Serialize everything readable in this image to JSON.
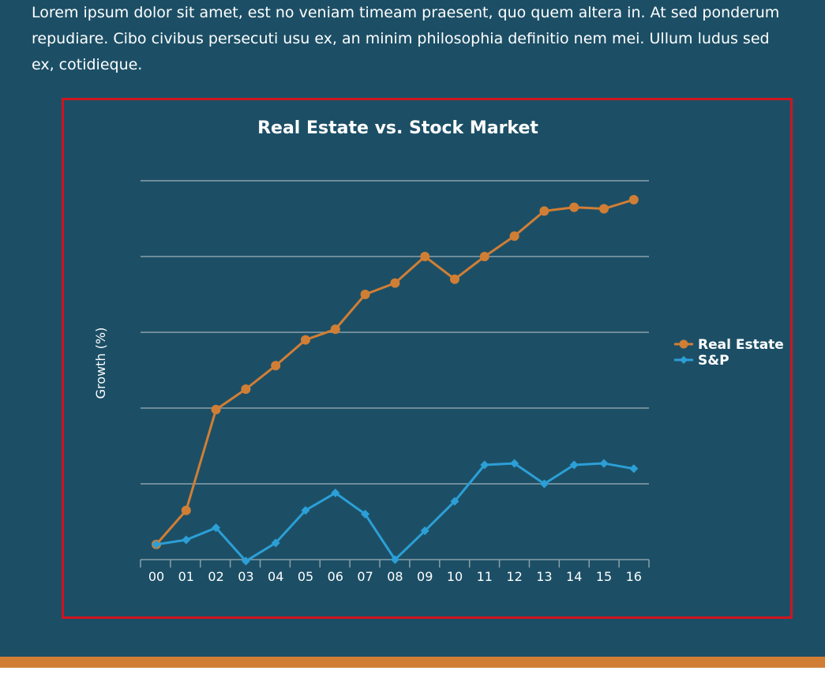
{
  "intro": {
    "text": "Lorem ipsum dolor sit amet, est no veniam timeam praesent, quo quem altera in. At sed ponderum repudiare. Cibo civibus persecuti usu ex, an minim philosophia definitio nem mei. Ullum ludus sed ex, cotidieque."
  },
  "colors": {
    "background": "#1c4f66",
    "real_estate": "#d17e35",
    "sp": "#2c9fd6",
    "frame_border": "#d0141e",
    "footer_bar": "#d17e35",
    "gridline": "#8aa0aa"
  },
  "chart_data": {
    "type": "line",
    "title": "Real Estate vs. Stock Market",
    "xlabel": "",
    "ylabel": "Growth (%)",
    "x": [
      "00",
      "01",
      "02",
      "03",
      "04",
      "05",
      "06",
      "07",
      "08",
      "09",
      "10",
      "11",
      "12",
      "13",
      "14",
      "15",
      "16"
    ],
    "ylim": [
      -1,
      4
    ],
    "y_tick_labels_shown": false,
    "grid": true,
    "legend_position": "right",
    "series": [
      {
        "name": "Real Estate",
        "marker": "circle",
        "values": [
          -0.8,
          -0.35,
          0.98,
          1.25,
          1.56,
          1.9,
          2.04,
          2.5,
          2.65,
          3.0,
          2.7,
          3.0,
          3.27,
          3.6,
          3.65,
          3.63,
          3.75
        ]
      },
      {
        "name": "S&P",
        "marker": "diamond",
        "values": [
          -0.8,
          -0.74,
          -0.58,
          -1.02,
          -0.78,
          -0.35,
          -0.12,
          -0.4,
          -1.0,
          -0.62,
          -0.23,
          0.25,
          0.27,
          0.0,
          0.25,
          0.27,
          0.2
        ]
      }
    ]
  }
}
